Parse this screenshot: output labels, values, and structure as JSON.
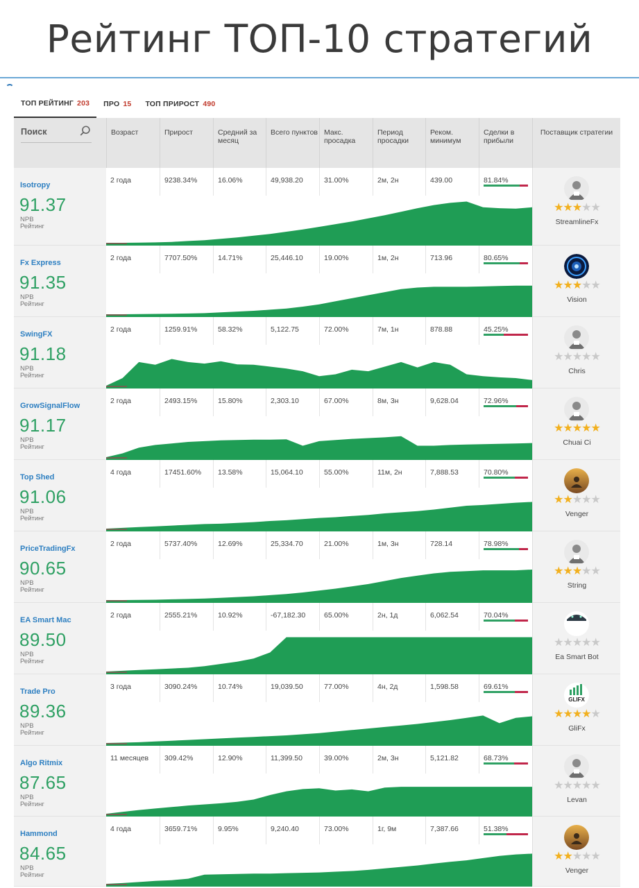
{
  "page_title": "Рейтинг ТОП-10 стратегий",
  "tabs": [
    {
      "label": "ТОП РЕЙТИНГ",
      "count": "203"
    },
    {
      "label": "ПРО",
      "count": "15"
    },
    {
      "label": "ТОП ПРИРОСТ",
      "count": "490"
    }
  ],
  "search": {
    "placeholder": "Поиск"
  },
  "columns": {
    "age": "Возраст",
    "growth": "Прирост",
    "monthly": "Средний за месяц",
    "points": "Всего пунктов",
    "drawdown": "Макс. просадка",
    "dd_period": "Период просадки",
    "min_deposit": "Реком. минимум",
    "profitable": "Сделки в прибыли",
    "provider": "Поставщик стратегии"
  },
  "npb_label": "NPB",
  "rating_label": "Рейтинг",
  "strategies": [
    {
      "name": "Isotropy",
      "score": "91.37",
      "age": "2 года",
      "growth": "9238.34%",
      "monthly": "16.06%",
      "points": "49,938.20",
      "drawdown": "31.00%",
      "dd_period": "2м, 2н",
      "min_deposit": "439.00",
      "profitable": "81.84%",
      "profitable_fraction": 0.818,
      "stars": 3,
      "provider": "StreamlineFx",
      "avatar": "user-avatar-icon",
      "curve": [
        0,
        0,
        0.005,
        0.01,
        0.02,
        0.04,
        0.06,
        0.09,
        0.12,
        0.16,
        0.2,
        0.25,
        0.3,
        0.36,
        0.42,
        0.48,
        0.55,
        0.62,
        0.7,
        0.78,
        0.85,
        0.9,
        0.93,
        0.8,
        0.78,
        0.77,
        0.8
      ]
    },
    {
      "name": "Fx Express",
      "score": "91.35",
      "age": "2 года",
      "growth": "7707.50%",
      "monthly": "14.71%",
      "points": "25,446.10",
      "drawdown": "19.00%",
      "dd_period": "1м, 2н",
      "min_deposit": "713.96",
      "profitable": "80.65%",
      "profitable_fraction": 0.806,
      "stars": 3,
      "provider": "Vision",
      "avatar": "vision-avatar-icon",
      "curve": [
        0,
        0,
        0.005,
        0.01,
        0.015,
        0.02,
        0.03,
        0.05,
        0.07,
        0.09,
        0.12,
        0.15,
        0.2,
        0.26,
        0.34,
        0.42,
        0.5,
        0.58,
        0.66,
        0.7,
        0.72,
        0.72,
        0.72,
        0.73,
        0.74,
        0.75,
        0.75
      ]
    },
    {
      "name": "SwingFX",
      "score": "91.18",
      "age": "2 года",
      "growth": "1259.91%",
      "monthly": "58.32%",
      "points": "5,122.75",
      "drawdown": "72.00%",
      "dd_period": "7м, 1н",
      "min_deposit": "878.88",
      "profitable": "45.25%",
      "profitable_fraction": 0.452,
      "stars": 0,
      "provider": "Chris",
      "avatar": "user-avatar-icon",
      "curve": [
        0,
        0.2,
        0.62,
        0.55,
        0.7,
        0.62,
        0.58,
        0.64,
        0.56,
        0.55,
        0.5,
        0.45,
        0.38,
        0.25,
        0.3,
        0.42,
        0.38,
        0.5,
        0.62,
        0.48,
        0.62,
        0.55,
        0.3,
        0.25,
        0.22,
        0.2,
        0.15
      ]
    },
    {
      "name": "GrowSignalFlow",
      "score": "91.17",
      "age": "2 года",
      "growth": "2493.15%",
      "monthly": "15.80%",
      "points": "2,303.10",
      "drawdown": "67.00%",
      "dd_period": "8м, 3н",
      "min_deposit": "9,628.04",
      "profitable": "72.96%",
      "profitable_fraction": 0.73,
      "stars": 5,
      "provider": "Chuai Ci",
      "avatar": "user-avatar-icon",
      "curve": [
        0,
        0.1,
        0.25,
        0.32,
        0.36,
        0.4,
        0.42,
        0.44,
        0.45,
        0.46,
        0.46,
        0.47,
        0.3,
        0.42,
        0.45,
        0.48,
        0.5,
        0.52,
        0.55,
        0.3,
        0.3,
        0.32,
        0.33,
        0.34,
        0.35,
        0.36,
        0.37
      ]
    },
    {
      "name": "Top Shed",
      "score": "91.06",
      "age": "4 года",
      "growth": "17451.60%",
      "monthly": "13.58%",
      "points": "15,064.10",
      "drawdown": "55.00%",
      "dd_period": "11м, 2н",
      "min_deposit": "7,888.53",
      "profitable": "70.80%",
      "profitable_fraction": 0.708,
      "stars": 2,
      "provider": "Venger",
      "avatar": "venger-avatar-icon",
      "curve": [
        0,
        0.02,
        0.04,
        0.06,
        0.08,
        0.1,
        0.12,
        0.13,
        0.15,
        0.17,
        0.2,
        0.22,
        0.25,
        0.28,
        0.3,
        0.33,
        0.36,
        0.4,
        0.43,
        0.46,
        0.5,
        0.55,
        0.6,
        0.62,
        0.65,
        0.68,
        0.7
      ]
    },
    {
      "name": "PriceTradingFx",
      "score": "90.65",
      "age": "2 года",
      "growth": "5737.40%",
      "monthly": "12.69%",
      "points": "25,334.70",
      "drawdown": "21.00%",
      "dd_period": "1м, 3н",
      "min_deposit": "728.14",
      "profitable": "78.98%",
      "profitable_fraction": 0.79,
      "stars": 3,
      "provider": "String",
      "avatar": "user-avatar-icon",
      "curve": [
        0,
        0,
        0.005,
        0.01,
        0.02,
        0.03,
        0.04,
        0.06,
        0.08,
        0.1,
        0.13,
        0.16,
        0.2,
        0.25,
        0.3,
        0.36,
        0.42,
        0.5,
        0.58,
        0.64,
        0.7,
        0.74,
        0.76,
        0.78,
        0.78,
        0.78,
        0.8
      ]
    },
    {
      "name": "EA Smart Mac",
      "score": "89.50",
      "age": "2 года",
      "growth": "2555.21%",
      "monthly": "10.92%",
      "points": "-67,182.30",
      "drawdown": "65.00%",
      "dd_period": "2н, 1д",
      "min_deposit": "6,062.54",
      "profitable": "70.04%",
      "profitable_fraction": 0.7,
      "stars": 0,
      "provider": "Ea Smart Bot",
      "avatar": "bot-avatar-icon",
      "curve": [
        0,
        0.02,
        0.04,
        0.06,
        0.08,
        0.1,
        0.14,
        0.2,
        0.26,
        0.34,
        0.5,
        0.9,
        0.9,
        0.9,
        0.9,
        0.9,
        0.9,
        0.9,
        0.9,
        0.9,
        0.9,
        0.9,
        0.9,
        0.9,
        0.9,
        0.9,
        0.9
      ]
    },
    {
      "name": "Trade Pro",
      "score": "89.36",
      "age": "3 года",
      "growth": "3090.24%",
      "monthly": "10.74%",
      "points": "19,039.50",
      "drawdown": "77.00%",
      "dd_period": "4н, 2д",
      "min_deposit": "1,598.58",
      "profitable": "69.61%",
      "profitable_fraction": 0.696,
      "stars": 4,
      "provider": "GliFx",
      "avatar": "glifx-logo-icon",
      "curve": [
        0,
        0.01,
        0.02,
        0.04,
        0.06,
        0.08,
        0.1,
        0.12,
        0.14,
        0.16,
        0.18,
        0.2,
        0.23,
        0.26,
        0.3,
        0.34,
        0.38,
        0.42,
        0.46,
        0.5,
        0.55,
        0.6,
        0.66,
        0.72,
        0.52,
        0.66,
        0.7
      ]
    },
    {
      "name": "Algo Ritmix",
      "score": "87.65",
      "age": "11 месяцев",
      "growth": "309.42%",
      "monthly": "12.90%",
      "points": "11,399.50",
      "drawdown": "39.00%",
      "dd_period": "2м, 3н",
      "min_deposit": "5,121.82",
      "profitable": "68.73%",
      "profitable_fraction": 0.687,
      "stars": 0,
      "provider": "Levan",
      "avatar": "user-avatar-icon",
      "curve": [
        0,
        0.05,
        0.1,
        0.14,
        0.18,
        0.22,
        0.25,
        0.28,
        0.32,
        0.38,
        0.5,
        0.6,
        0.66,
        0.68,
        0.62,
        0.65,
        0.6,
        0.7,
        0.72,
        0.72,
        0.72,
        0.72,
        0.72,
        0.72,
        0.72,
        0.72,
        0.72
      ]
    },
    {
      "name": "Hammond",
      "score": "84.65",
      "age": "4 года",
      "growth": "3659.71%",
      "monthly": "9.95%",
      "points": "9,240.40",
      "drawdown": "73.00%",
      "dd_period": "1г, 9м",
      "min_deposit": "7,387.66",
      "profitable": "51.38%",
      "profitable_fraction": 0.514,
      "stars": 2,
      "provider": "Venger",
      "avatar": "venger-avatar-icon",
      "curve": [
        0,
        0.02,
        0.05,
        0.08,
        0.1,
        0.14,
        0.25,
        0.26,
        0.27,
        0.28,
        0.28,
        0.29,
        0.3,
        0.31,
        0.33,
        0.35,
        0.38,
        0.42,
        0.46,
        0.5,
        0.55,
        0.6,
        0.64,
        0.7,
        0.76,
        0.8,
        0.82
      ]
    }
  ]
}
